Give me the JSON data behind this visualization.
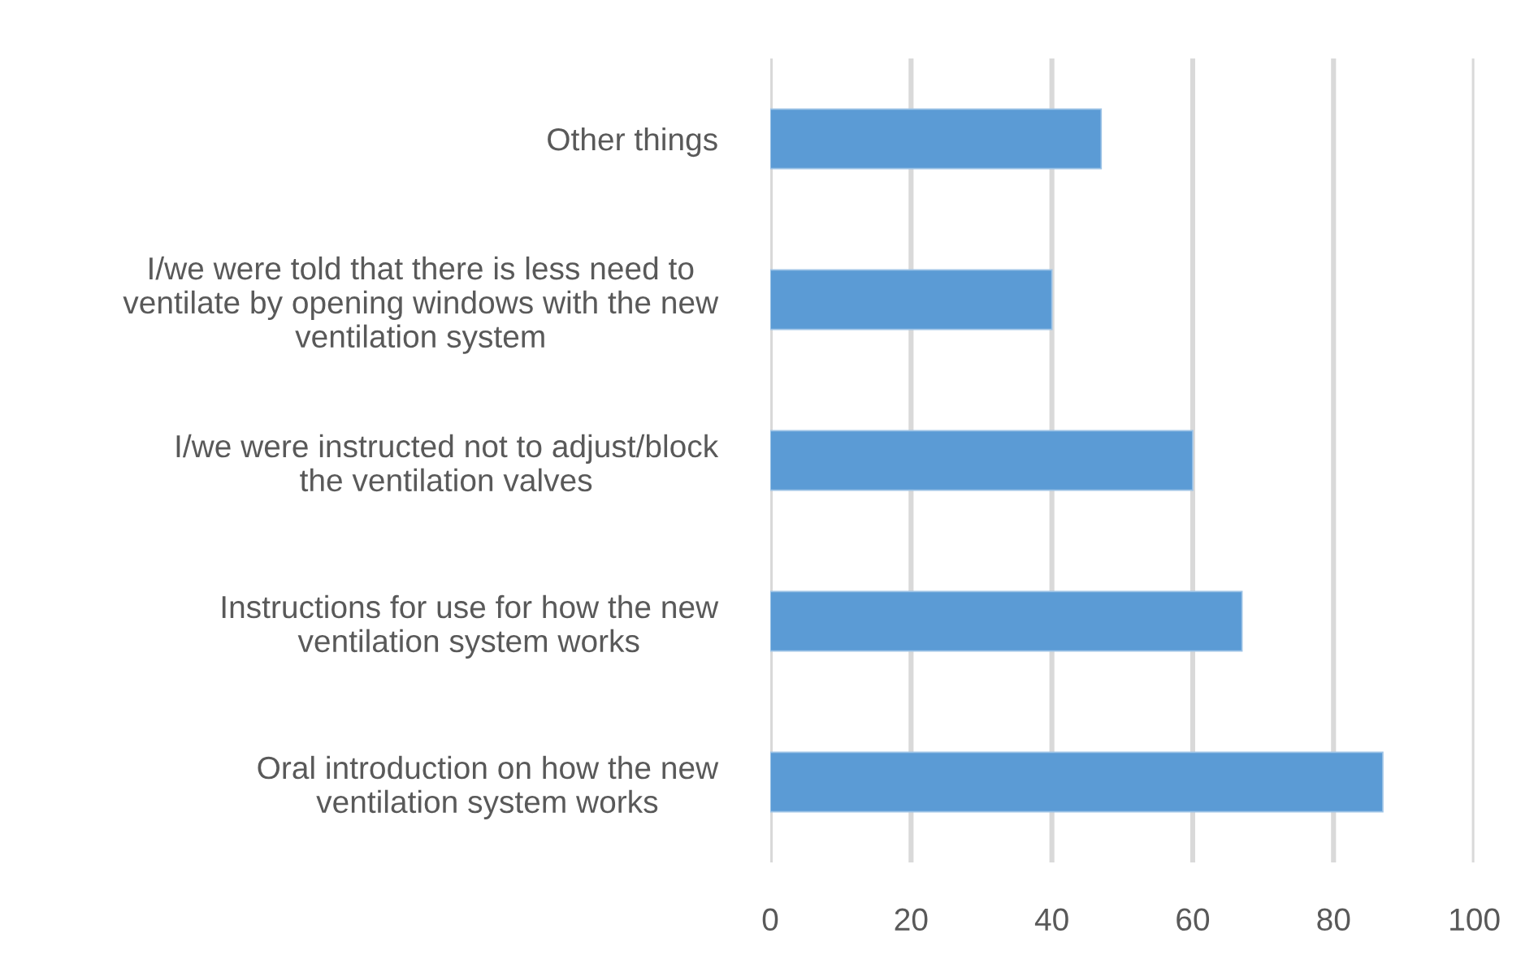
{
  "chart_data": {
    "type": "bar",
    "orientation": "horizontal",
    "categories": [
      "Other things",
      "I/we were told that there is less need to\nventilate by opening windows with the new\nventilation system",
      "I/we were instructed not to adjust/block\nthe ventilation valves",
      "Instructions for use for how the new\nventilation system works",
      "Oral introduction on how the new\nventilation system works"
    ],
    "values": [
      47,
      40,
      60,
      67,
      87
    ],
    "color": "#5b9bd5",
    "xlim": [
      0,
      100
    ],
    "xticks": [
      0,
      20,
      40,
      60,
      80,
      100
    ],
    "grid": "x"
  }
}
